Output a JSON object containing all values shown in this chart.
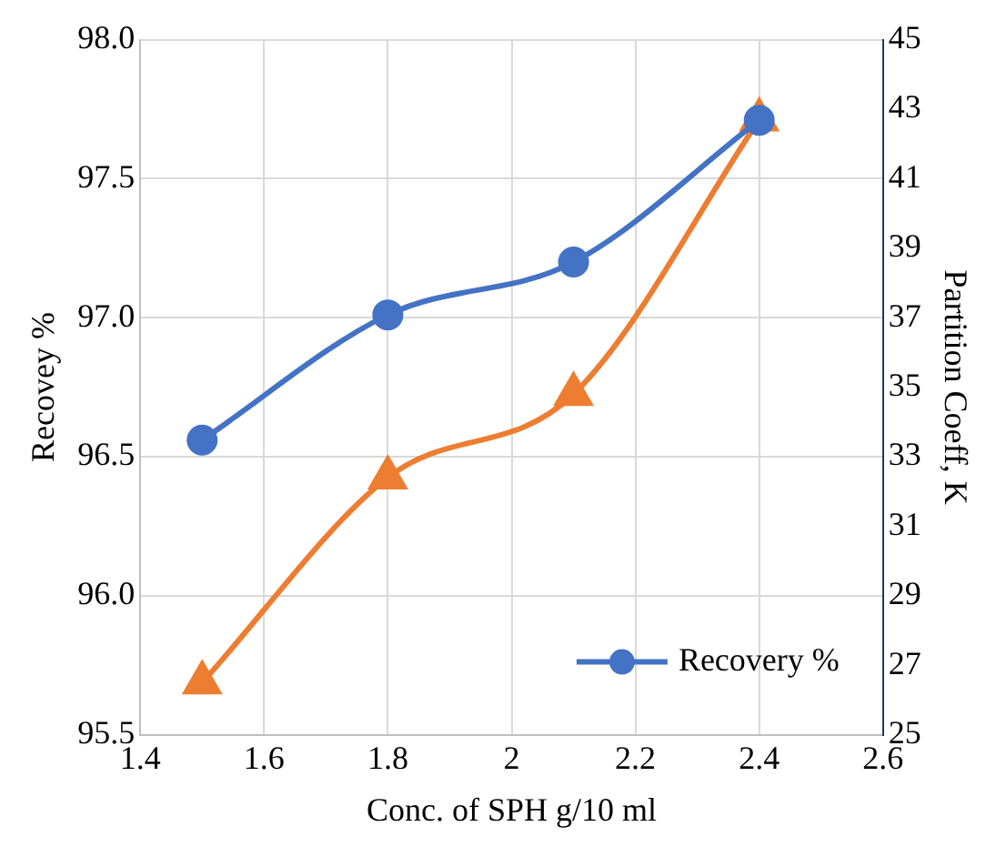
{
  "chart_data": {
    "type": "line",
    "xlabel": "Conc. of SPH g/10 ml",
    "ylabel": "Recovey %",
    "y2label": "Partition Coeff, K",
    "x": [
      1.5,
      1.8,
      2.1,
      2.4
    ],
    "series": [
      {
        "name": "Recovery %",
        "color": "#4472c4",
        "values": [
          96.56,
          97.01,
          97.2,
          97.71
        ],
        "marker": "circle"
      },
      {
        "color": "#ed7d31",
        "values": [
          26.5,
          32.4,
          34.8,
          42.7
        ],
        "axis": "y2",
        "marker": "triangle"
      }
    ],
    "xlim": [
      1.4,
      2.6
    ],
    "xticks": [
      1.4,
      1.6,
      1.8,
      2,
      2.2,
      2.4,
      2.6
    ],
    "ylim": [
      95.5,
      98
    ],
    "yticks": [
      {
        "value": 95.5,
        "label": "95.5"
      },
      {
        "value": 96,
        "label": "96.0"
      },
      {
        "value": 96.5,
        "label": "96.5"
      },
      {
        "value": 97,
        "label": "97.0"
      },
      {
        "value": 97.5,
        "label": "97.5"
      },
      {
        "value": 98,
        "label": "98.0"
      }
    ],
    "y2lim": [
      25,
      45
    ],
    "y2ticks": [
      25,
      27,
      29,
      31,
      33,
      35,
      37,
      39,
      41,
      43,
      45
    ],
    "grid": true,
    "legend": "bottom right"
  }
}
